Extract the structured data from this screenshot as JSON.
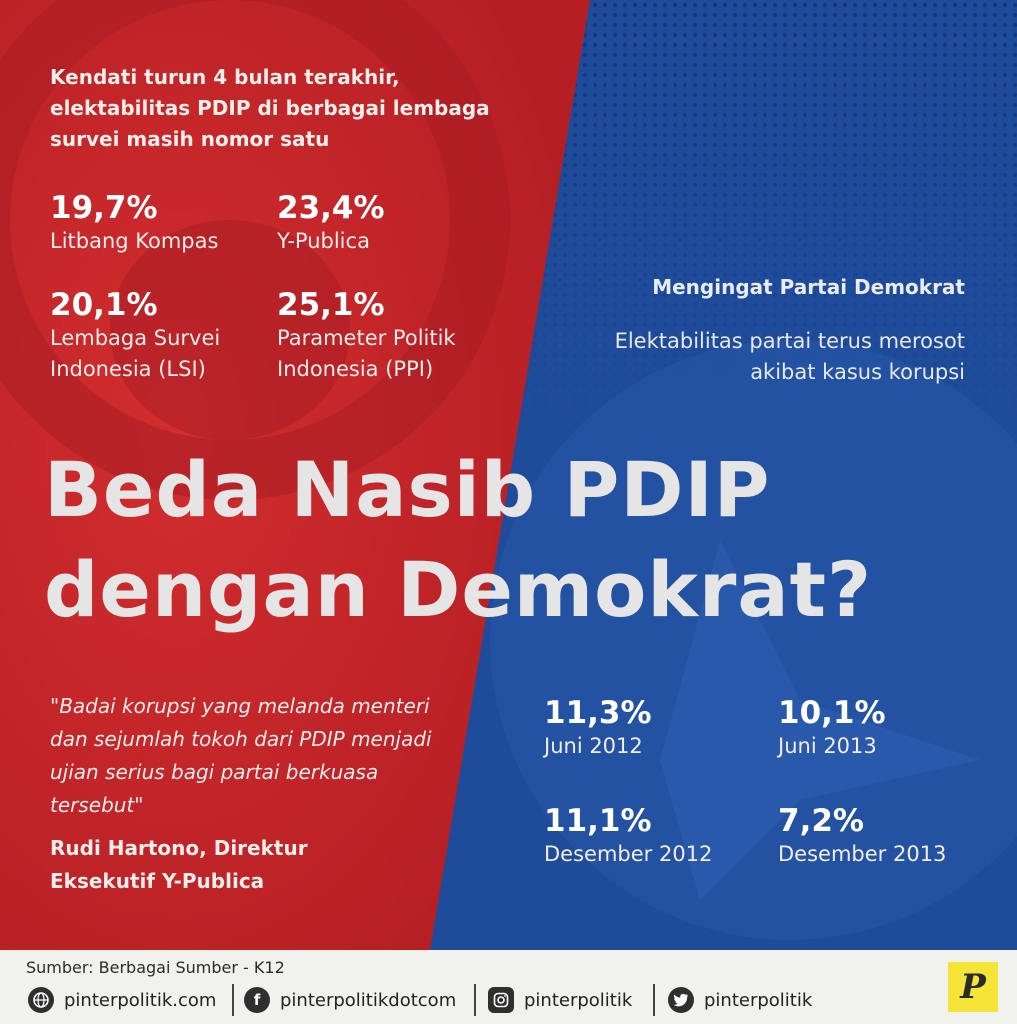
{
  "intro": "Kendati turun 4 bulan terakhir, elektabilitas PDIP di berbagai lembaga survei masih nomor satu",
  "pdip_stats": [
    {
      "value": "19,7%",
      "label": "Litbang Kompas"
    },
    {
      "value": "23,4%",
      "label": "Y-Publica"
    },
    {
      "value": "20,1%",
      "label": "Lembaga Survei Indonesia (LSI)"
    },
    {
      "value": "25,1%",
      "label": "Parameter Politik Indonesia (PPI)"
    }
  ],
  "demokrat": {
    "heading": "Mengingat Partai Demokrat",
    "subtitle": "Elektabilitas partai terus merosot akibat kasus korupsi",
    "stats": [
      {
        "value": "11,3%",
        "label": "Juni 2012"
      },
      {
        "value": "10,1%",
        "label": "Juni 2013"
      },
      {
        "value": "11,1%",
        "label": "Desember 2012"
      },
      {
        "value": "7,2%",
        "label": "Desember 2013"
      }
    ]
  },
  "title_line1": "Beda Nasib PDIP",
  "title_line2": "dengan Demokrat?",
  "quote": "\"Badai korupsi yang melanda menteri dan sejumlah tokoh dari PDIP menjadi ujian serius bagi partai berkuasa tersebut\"",
  "attribution": "Rudi Hartono, Direktur Eksekutif Y-Publica",
  "footer": {
    "source": "Sumber: Berbagai Sumber - K12",
    "website": "pinterpolitik.com",
    "facebook": "pinterpolitikdotcom",
    "instagram": "pinterpolitik",
    "twitter": "pinterpolitik",
    "logo_letter": "P"
  },
  "colors": {
    "red": "#c9262a",
    "blue": "#1e4a99",
    "logo_yellow": "#f3e437"
  },
  "icons": [
    "globe-icon",
    "facebook-icon",
    "instagram-icon",
    "twitter-icon"
  ]
}
